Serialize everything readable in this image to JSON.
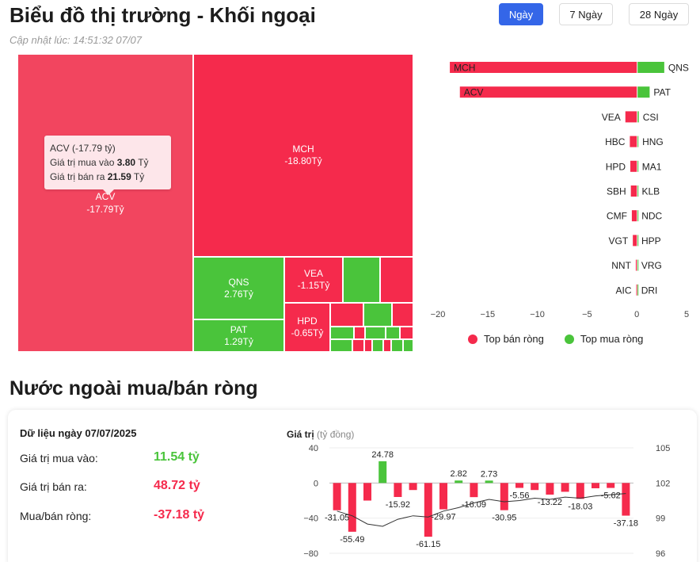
{
  "header": {
    "title": "Biểu đồ thị trường - Khối ngoại",
    "updated": "Cập nhật lúc: 14:51:32 07/07"
  },
  "tabs": [
    {
      "label": "Ngày",
      "active": true
    },
    {
      "label": "7 Ngày",
      "active": false
    },
    {
      "label": "28 Ngày",
      "active": false
    }
  ],
  "treemap": {
    "cells": [
      {
        "ticker": "ACV",
        "value": "-17.79Tỷ"
      },
      {
        "ticker": "MCH",
        "value": "-18.80Tỷ"
      },
      {
        "ticker": "QNS",
        "value": "2.76Tỷ"
      },
      {
        "ticker": "PAT",
        "value": "1.29Tỷ"
      },
      {
        "ticker": "VEA",
        "value": "-1.15Tỷ"
      },
      {
        "ticker": "HPD",
        "value": "-0.65Tỷ"
      }
    ],
    "tooltip": {
      "title": "ACV (-17.79 tỷ)",
      "buy_label": "Giá trị mua vào",
      "buy_value": "3.80",
      "sell_label": "Giá trị bán ra",
      "sell_value": "21.59",
      "unit": "Tỷ"
    }
  },
  "colors": {
    "sell": "#f52a4c",
    "buy": "#4ac43b",
    "accent": "#3466e8"
  },
  "legend": {
    "sell": "Top bán ròng",
    "buy": "Top mua ròng"
  },
  "section": {
    "title": "Nước ngoài mua/bán ròng",
    "date_label": "Dữ liệu ngày 07/07/2025",
    "rows": [
      {
        "label": "Giá trị mua vào:",
        "value": "11.54 tỷ",
        "color": "green"
      },
      {
        "label": "Giá trị bán ra:",
        "value": "48.72 tỷ",
        "color": "red"
      },
      {
        "label": "Mua/bán ròng:",
        "value": "-37.18 tỷ",
        "color": "red"
      }
    ],
    "chart_label": "Giá trị",
    "chart_unit": "(tỷ đồng)"
  },
  "chart_data": [
    {
      "type": "bar",
      "orientation": "horizontal",
      "xlim": [
        -20,
        5
      ],
      "xticks": [
        -20,
        -15,
        -10,
        -5,
        0,
        5
      ],
      "sell_categories": [
        "MCH",
        "ACV",
        "VEA",
        "HBC",
        "HPD",
        "SBH",
        "CMF",
        "VGT",
        "NNT",
        "AIC"
      ],
      "sell_values": [
        -18.8,
        -17.79,
        -1.15,
        -0.7,
        -0.65,
        -0.6,
        -0.5,
        -0.4,
        -0.1,
        -0.05
      ],
      "buy_categories": [
        "QNS",
        "PAT",
        "CSI",
        "HNG",
        "MA1",
        "KLB",
        "NDC",
        "HPP",
        "VRG",
        "DRI"
      ],
      "buy_values": [
        2.76,
        1.29,
        0.2,
        0.15,
        0.12,
        0.1,
        0.08,
        0.06,
        0.05,
        0.04
      ],
      "legend": [
        "Top bán ròng",
        "Top mua ròng"
      ]
    },
    {
      "type": "bar",
      "values": [
        -31.05,
        -55.49,
        -20,
        24.78,
        -15.92,
        -8,
        -61.15,
        -29.97,
        2.82,
        -16.09,
        2.73,
        -30.95,
        -5.56,
        -8,
        -13.22,
        -10,
        -18.03,
        -6,
        -5.62,
        -37.18
      ],
      "labels": [
        "-31.05",
        "-55.49",
        "",
        "24.78",
        "-15.92",
        "",
        "-61.15",
        "-29.97",
        "2.82",
        "-16.09",
        "2.73",
        "-30.95",
        "-5.56",
        "",
        "-13.22",
        "",
        "-18.03",
        "",
        "-5.62",
        "-37.18"
      ],
      "line_values": [
        99.6,
        99.2,
        98.5,
        98.3,
        98.9,
        99.2,
        99.1,
        99.6,
        99.9,
        100.3,
        100.6,
        100.4,
        100.5,
        100.7,
        100.6,
        100.8,
        100.7,
        100.9,
        101.0,
        101.1
      ],
      "ylim": [
        -80,
        40
      ],
      "yticks": [
        40,
        0,
        -40,
        -80
      ],
      "y2lim": [
        96,
        105
      ],
      "y2ticks": [
        105,
        102,
        99,
        96
      ]
    }
  ]
}
